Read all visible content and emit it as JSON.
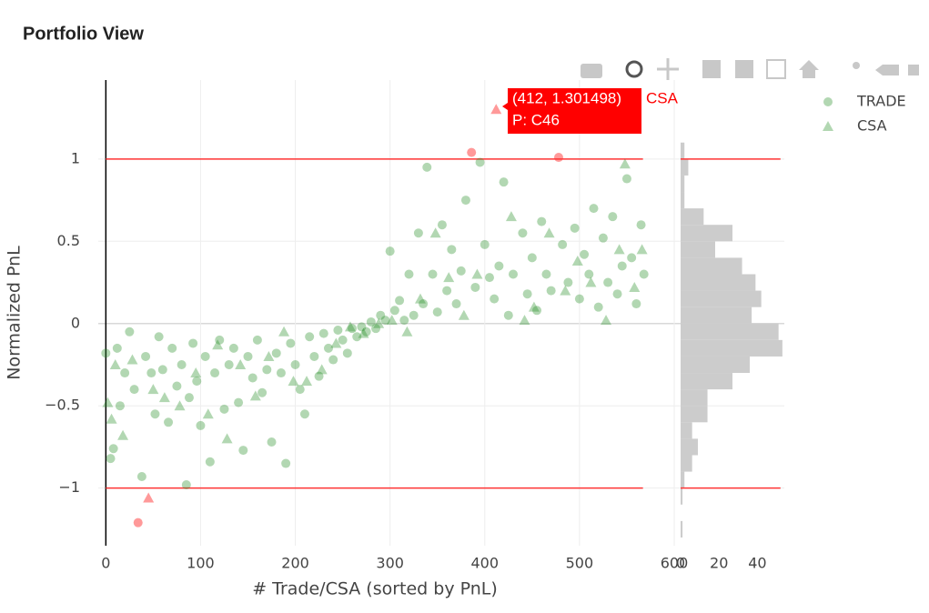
{
  "title": "Portfolio View",
  "chart_data": [
    {
      "type": "scatter",
      "x_title": "# Trade/CSA (sorted by PnL)",
      "y_title": "Normalized PnL",
      "xlim": [
        -8,
        600
      ],
      "ylim": [
        -1.35,
        1.48
      ],
      "xticks": [
        0,
        100,
        200,
        300,
        400,
        500,
        600
      ],
      "yticks": [
        {
          "value": -1,
          "label": "−1"
        },
        {
          "value": -0.5,
          "label": "−0.5"
        },
        0,
        0.5,
        1
      ],
      "grid": true,
      "hlines": [
        1,
        -1
      ],
      "hline_x_range": [
        0,
        567
      ],
      "hline_color": "#ff3333",
      "outlier_color": "#ff3333",
      "legend_position": "top-right",
      "series": [
        {
          "name": "TRADE",
          "color": "#228b22",
          "marker": "circle",
          "x": [
            0,
            5,
            8,
            12,
            15,
            20,
            25,
            30,
            34,
            38,
            42,
            48,
            52,
            56,
            60,
            66,
            70,
            75,
            80,
            85,
            88,
            92,
            96,
            100,
            105,
            110,
            115,
            120,
            125,
            130,
            135,
            140,
            145,
            150,
            155,
            160,
            165,
            170,
            175,
            180,
            185,
            190,
            195,
            200,
            205,
            210,
            215,
            220,
            225,
            230,
            235,
            240,
            245,
            250,
            255,
            260,
            265,
            270,
            275,
            280,
            285,
            290,
            295,
            300,
            305,
            310,
            315,
            320,
            325,
            330,
            335,
            339,
            345,
            350,
            355,
            360,
            365,
            370,
            375,
            380,
            386,
            390,
            395,
            400,
            405,
            410,
            415,
            420,
            425,
            430,
            440,
            445,
            450,
            455,
            460,
            465,
            470,
            478,
            482,
            488,
            495,
            500,
            505,
            510,
            515,
            520,
            525,
            530,
            535,
            540,
            545,
            550,
            555,
            560,
            565,
            568
          ],
          "y": [
            -0.18,
            -0.82,
            -0.76,
            -0.15,
            -0.5,
            -0.3,
            -0.05,
            -0.4,
            -1.21,
            -0.93,
            -0.2,
            -0.3,
            -0.55,
            -0.08,
            -0.28,
            -0.6,
            -0.15,
            -0.38,
            -0.25,
            -0.98,
            -0.45,
            -0.12,
            -0.35,
            -0.62,
            -0.2,
            -0.84,
            -0.3,
            -0.1,
            -0.52,
            -0.25,
            -0.15,
            -0.48,
            -0.77,
            -0.2,
            -0.33,
            -0.1,
            -0.42,
            -0.28,
            -0.72,
            -0.18,
            -0.3,
            -0.85,
            -0.12,
            -0.25,
            -0.4,
            -0.55,
            -0.08,
            -0.2,
            -0.32,
            -0.06,
            -0.15,
            -0.22,
            -0.04,
            -0.1,
            -0.18,
            -0.03,
            -0.08,
            -0.02,
            -0.05,
            0.01,
            -0.03,
            0.05,
            0.02,
            0.44,
            0.08,
            0.14,
            0.02,
            0.3,
            0.05,
            0.55,
            0.12,
            0.95,
            0.3,
            0.07,
            0.6,
            0.2,
            0.45,
            0.12,
            0.32,
            0.75,
            1.04,
            0.22,
            0.98,
            0.48,
            0.28,
            0.15,
            0.35,
            0.86,
            0.05,
            0.3,
            0.55,
            0.18,
            0.4,
            0.08,
            0.62,
            0.3,
            0.2,
            1.01,
            0.48,
            0.25,
            0.58,
            0.15,
            0.42,
            0.3,
            0.7,
            0.1,
            0.52,
            0.25,
            0.65,
            0.18,
            0.35,
            0.88,
            0.4,
            0.12,
            0.6,
            0.3
          ]
        },
        {
          "name": "CSA",
          "color": "#228b22",
          "marker": "triangle",
          "x": [
            2,
            6,
            10,
            18,
            28,
            45,
            50,
            62,
            78,
            95,
            108,
            118,
            128,
            142,
            158,
            172,
            188,
            198,
            212,
            228,
            243,
            258,
            272,
            288,
            302,
            318,
            332,
            348,
            362,
            378,
            392,
            412,
            428,
            442,
            452,
            468,
            485,
            498,
            512,
            528,
            542,
            548,
            558,
            566
          ],
          "y": [
            -0.48,
            -0.58,
            -0.25,
            -0.68,
            -0.22,
            -1.06,
            -0.4,
            -0.45,
            -0.5,
            -0.3,
            -0.55,
            -0.13,
            -0.7,
            -0.25,
            -0.44,
            -0.2,
            -0.05,
            -0.35,
            -0.35,
            -0.28,
            -0.12,
            -0.02,
            -0.06,
            0.0,
            0.02,
            -0.05,
            0.15,
            0.55,
            0.28,
            0.05,
            0.3,
            1.301498,
            0.65,
            0.02,
            0.1,
            0.55,
            0.2,
            0.38,
            0.25,
            0.02,
            0.45,
            0.97,
            0.22,
            0.45
          ]
        }
      ],
      "tooltip": {
        "lines": [
          "(412, 1.301498)",
          "P: C46"
        ],
        "trace": "CSA",
        "color": "#ff0000"
      }
    },
    {
      "type": "histogram",
      "orientation": "horizontal",
      "color": "#cccccc",
      "xlim": [
        0,
        54
      ],
      "xticks": [
        0,
        20,
        40
      ],
      "bins": [
        -1.3,
        -1.2,
        -1.1,
        -1.0,
        -0.9,
        -0.8,
        -0.7,
        -0.6,
        -0.5,
        -0.4,
        -0.3,
        -0.2,
        -0.1,
        0,
        0.1,
        0.2,
        0.3,
        0.4,
        0.5,
        0.6,
        0.7,
        0.8,
        0.9,
        1.0,
        1.1
      ],
      "counts": [
        1,
        0,
        1,
        2,
        6,
        9,
        6,
        14,
        14,
        27,
        36,
        53,
        51,
        37,
        42,
        39,
        32,
        18,
        27,
        12,
        2,
        2,
        4,
        2
      ],
      "hlines": [
        1,
        -1
      ],
      "hline_x_range": [
        0,
        52
      ]
    }
  ]
}
